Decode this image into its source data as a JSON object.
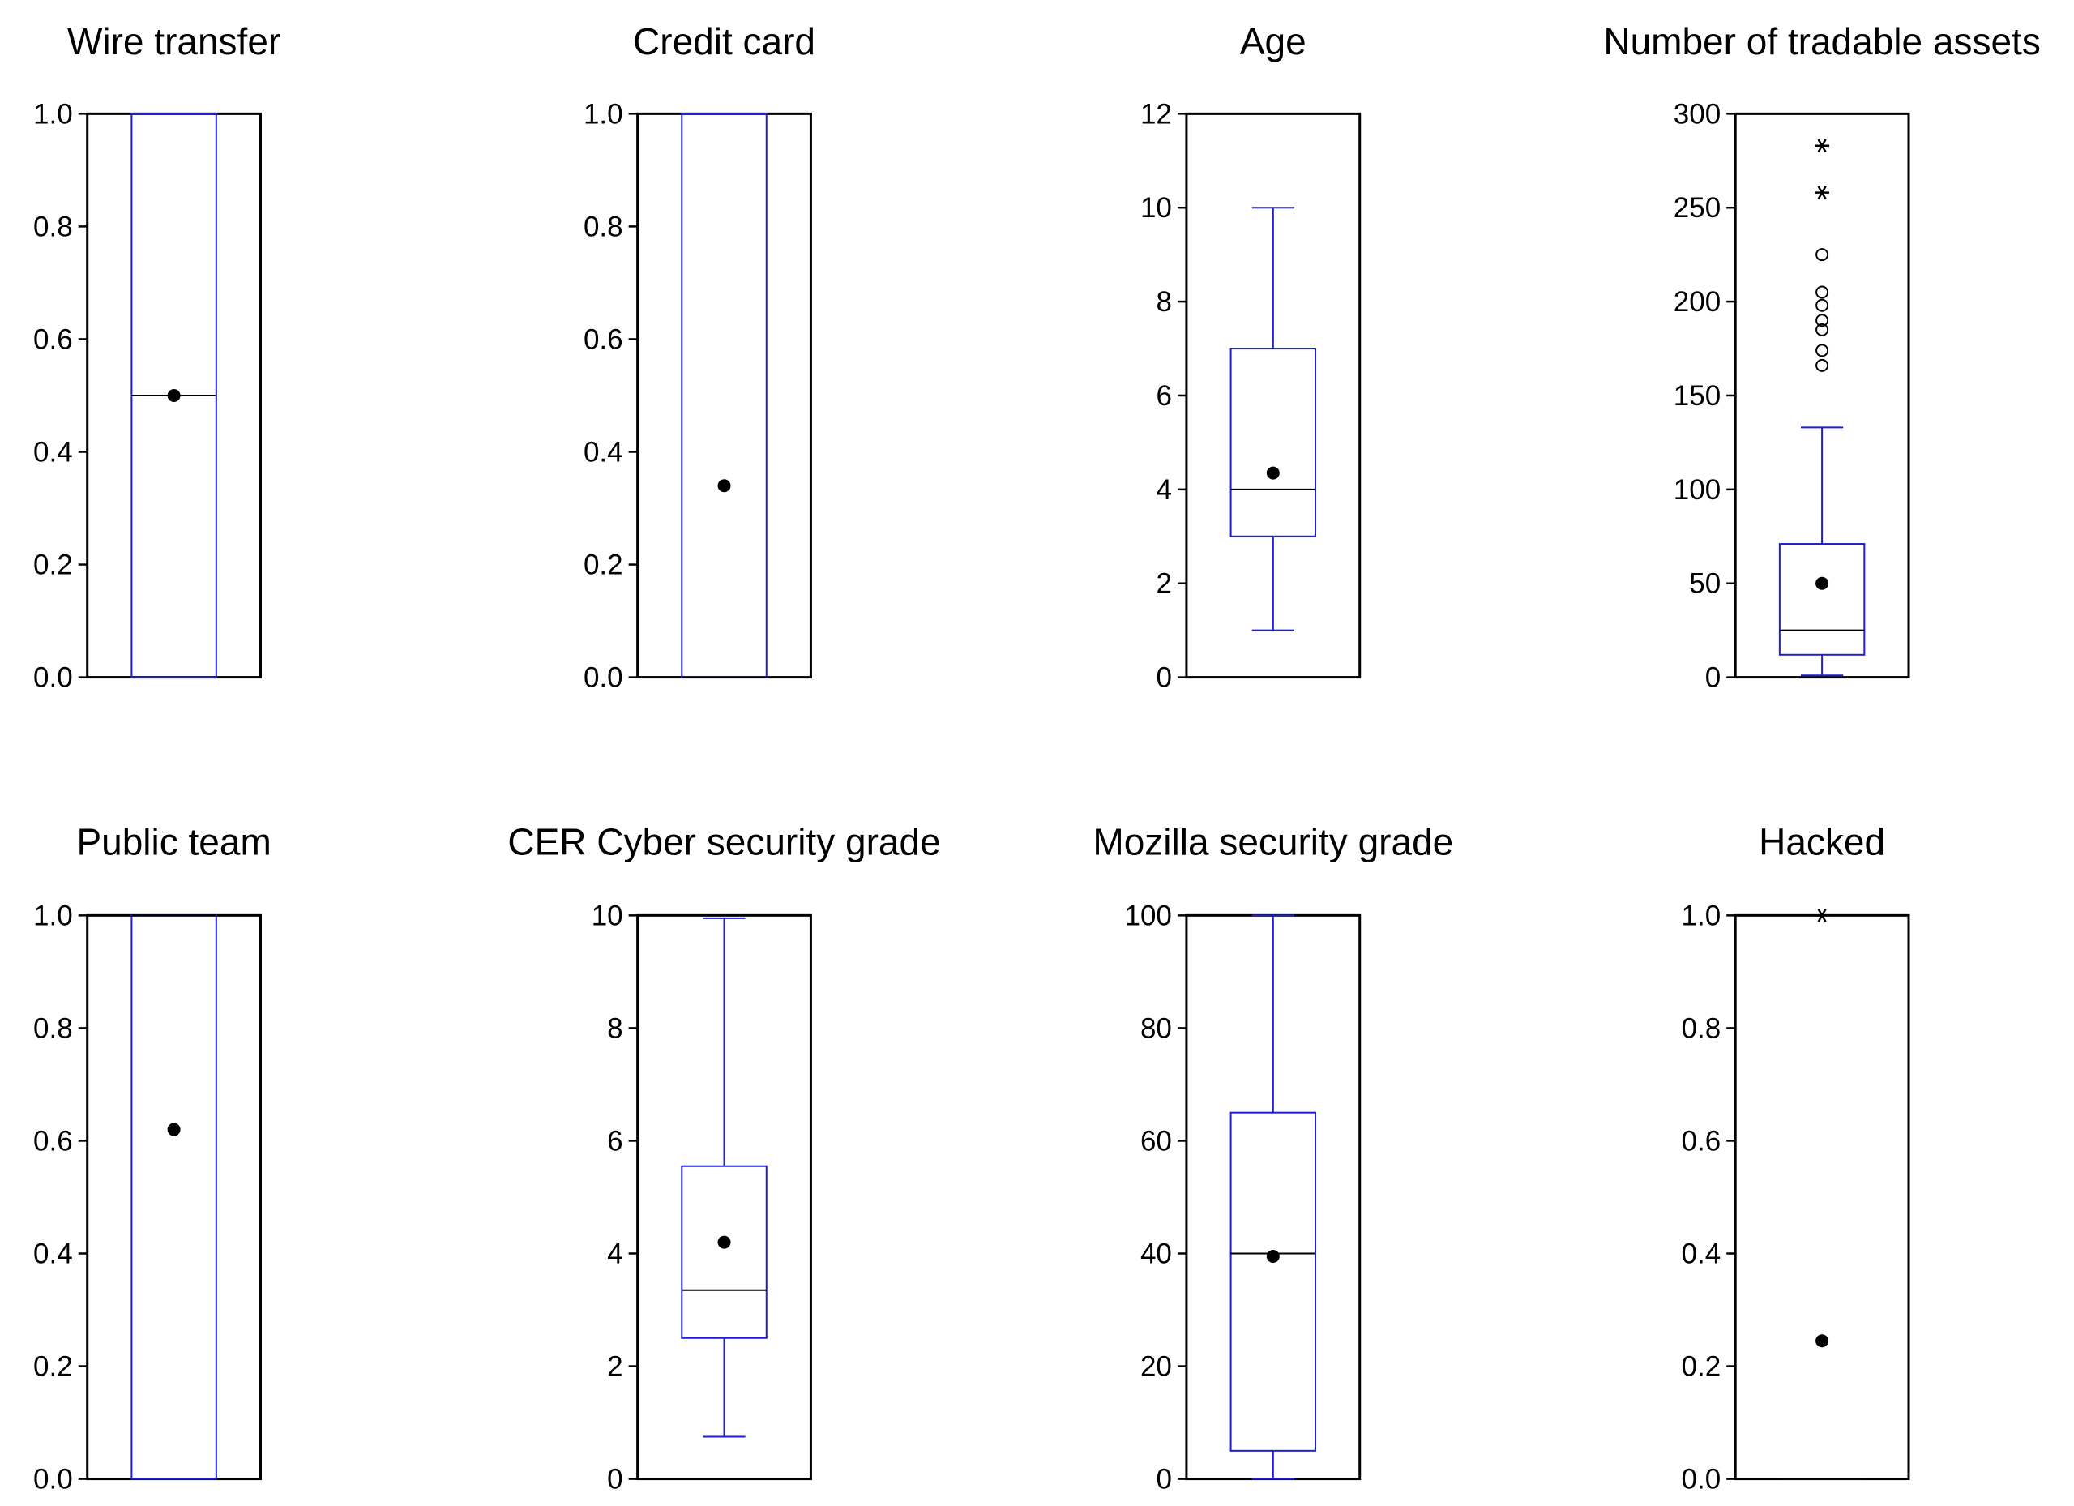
{
  "colors": {
    "box": "#1f1fcf",
    "ink": "#000000",
    "background": "#ffffff"
  },
  "chart_data": [
    {
      "type": "boxplot",
      "title": "Wire transfer",
      "ylim": [
        0,
        1.0
      ],
      "ticks": [
        {
          "v": 0,
          "label": "0.0"
        },
        {
          "v": 0.2,
          "label": "0.2"
        },
        {
          "v": 0.4,
          "label": "0.4"
        },
        {
          "v": 0.6,
          "label": "0.6"
        },
        {
          "v": 0.8,
          "label": "0.8"
        },
        {
          "v": 1.0,
          "label": "1.0"
        }
      ],
      "box": {
        "q1": 0,
        "median": 0.5,
        "q3": 1.0,
        "mean": 0.5,
        "whisker_low": 0,
        "whisker_high": 1.0
      },
      "outliers": []
    },
    {
      "type": "boxplot",
      "title": "Credit card",
      "ylim": [
        0,
        1.0
      ],
      "ticks": [
        {
          "v": 0,
          "label": "0.0"
        },
        {
          "v": 0.2,
          "label": "0.2"
        },
        {
          "v": 0.4,
          "label": "0.4"
        },
        {
          "v": 0.6,
          "label": "0.6"
        },
        {
          "v": 0.8,
          "label": "0.8"
        },
        {
          "v": 1.0,
          "label": "1.0"
        }
      ],
      "box": {
        "q1": 0,
        "median": 0,
        "q3": 1.0,
        "mean": 0.34,
        "whisker_low": 0,
        "whisker_high": 1.0
      },
      "outliers": []
    },
    {
      "type": "boxplot",
      "title": "Age",
      "ylim": [
        0,
        12
      ],
      "ticks": [
        {
          "v": 0,
          "label": "0"
        },
        {
          "v": 2,
          "label": "2"
        },
        {
          "v": 4,
          "label": "4"
        },
        {
          "v": 6,
          "label": "6"
        },
        {
          "v": 8,
          "label": "8"
        },
        {
          "v": 10,
          "label": "10"
        },
        {
          "v": 12,
          "label": "12"
        }
      ],
      "box": {
        "q1": 3,
        "median": 4,
        "q3": 7,
        "mean": 4.35,
        "whisker_low": 1,
        "whisker_high": 10
      },
      "outliers": []
    },
    {
      "type": "boxplot",
      "title": "Number of tradable assets",
      "ylim": [
        0,
        300
      ],
      "ticks": [
        {
          "v": 0,
          "label": "0"
        },
        {
          "v": 50,
          "label": "50"
        },
        {
          "v": 100,
          "label": "100"
        },
        {
          "v": 150,
          "label": "150"
        },
        {
          "v": 200,
          "label": "200"
        },
        {
          "v": 250,
          "label": "250"
        },
        {
          "v": 300,
          "label": "300"
        }
      ],
      "box": {
        "q1": 12,
        "median": 25,
        "q3": 71,
        "mean": 50,
        "whisker_low": 1,
        "whisker_high": 133
      },
      "outliers": [
        {
          "v": 283,
          "kind": "far"
        },
        {
          "v": 258,
          "kind": "far"
        },
        {
          "v": 225,
          "kind": "near"
        },
        {
          "v": 205,
          "kind": "near"
        },
        {
          "v": 198,
          "kind": "near"
        },
        {
          "v": 190,
          "kind": "near"
        },
        {
          "v": 185,
          "kind": "near"
        },
        {
          "v": 174,
          "kind": "near"
        },
        {
          "v": 166,
          "kind": "near"
        }
      ]
    },
    {
      "type": "boxplot",
      "title": "Public team",
      "ylim": [
        0,
        1.0
      ],
      "ticks": [
        {
          "v": 0,
          "label": "0.0"
        },
        {
          "v": 0.2,
          "label": "0.2"
        },
        {
          "v": 0.4,
          "label": "0.4"
        },
        {
          "v": 0.6,
          "label": "0.6"
        },
        {
          "v": 0.8,
          "label": "0.8"
        },
        {
          "v": 1.0,
          "label": "1.0"
        }
      ],
      "box": {
        "q1": 0,
        "median": 1.0,
        "q3": 1.0,
        "mean": 0.62,
        "whisker_low": 0,
        "whisker_high": 1.0
      },
      "outliers": []
    },
    {
      "type": "boxplot",
      "title": "CER Cyber security grade",
      "ylim": [
        0,
        10
      ],
      "ticks": [
        {
          "v": 0,
          "label": "0"
        },
        {
          "v": 2,
          "label": "2"
        },
        {
          "v": 4,
          "label": "4"
        },
        {
          "v": 6,
          "label": "6"
        },
        {
          "v": 8,
          "label": "8"
        },
        {
          "v": 10,
          "label": "10"
        }
      ],
      "box": {
        "q1": 2.5,
        "median": 3.35,
        "q3": 5.55,
        "mean": 4.2,
        "whisker_low": 0.75,
        "whisker_high": 9.95
      },
      "outliers": []
    },
    {
      "type": "boxplot",
      "title": "Mozilla  security  grade",
      "ylim": [
        0,
        100
      ],
      "ticks": [
        {
          "v": 0,
          "label": "0"
        },
        {
          "v": 20,
          "label": "20"
        },
        {
          "v": 40,
          "label": "40"
        },
        {
          "v": 60,
          "label": "60"
        },
        {
          "v": 80,
          "label": "80"
        },
        {
          "v": 100,
          "label": "100"
        }
      ],
      "box": {
        "q1": 5,
        "median": 40,
        "q3": 65,
        "mean": 39.5,
        "whisker_low": 0,
        "whisker_high": 100
      },
      "outliers": []
    },
    {
      "type": "boxplot",
      "title": "Hacked",
      "ylim": [
        0,
        1.0
      ],
      "ticks": [
        {
          "v": 0,
          "label": "0.0"
        },
        {
          "v": 0.2,
          "label": "0.2"
        },
        {
          "v": 0.4,
          "label": "0.4"
        },
        {
          "v": 0.6,
          "label": "0.6"
        },
        {
          "v": 0.8,
          "label": "0.8"
        },
        {
          "v": 1.0,
          "label": "1.0"
        }
      ],
      "box": {
        "q1": 0,
        "median": 0,
        "q3": 0,
        "mean": 0.245,
        "whisker_low": 0,
        "whisker_high": 0
      },
      "outliers": [
        {
          "v": 1.0,
          "kind": "far"
        }
      ]
    }
  ]
}
